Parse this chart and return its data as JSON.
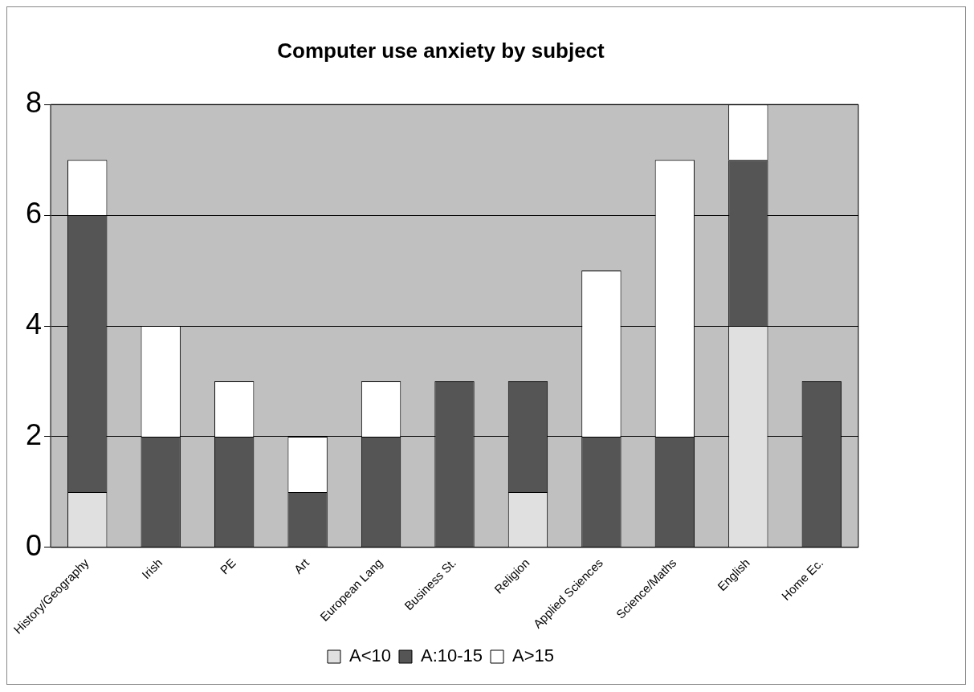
{
  "chart_data": {
    "type": "bar",
    "title": "Computer use anxiety by subject",
    "stacked": true,
    "categories": [
      "History/Geography",
      "Irish",
      "PE",
      "Art",
      "European Lang",
      "Business St.",
      "Religion",
      "Applied Sciences",
      "Science/Maths",
      "English",
      "Home Ec."
    ],
    "series": [
      {
        "name": "A<10",
        "color": "#e0e0e0",
        "values": [
          1,
          0,
          0,
          0,
          0,
          0,
          1,
          0,
          0,
          4,
          0
        ]
      },
      {
        "name": "A:10-15",
        "color": "#555555",
        "values": [
          5,
          2,
          2,
          1,
          2,
          3,
          2,
          2,
          2,
          3,
          3
        ]
      },
      {
        "name": "A>15",
        "color": "#ffffff",
        "values": [
          1,
          2,
          1,
          1,
          1,
          0,
          0,
          3,
          5,
          1,
          0
        ]
      }
    ],
    "ylim": [
      0,
      8
    ],
    "yticks": [
      0,
      2,
      4,
      6,
      8
    ],
    "grid": "y",
    "legend": "bottom"
  }
}
